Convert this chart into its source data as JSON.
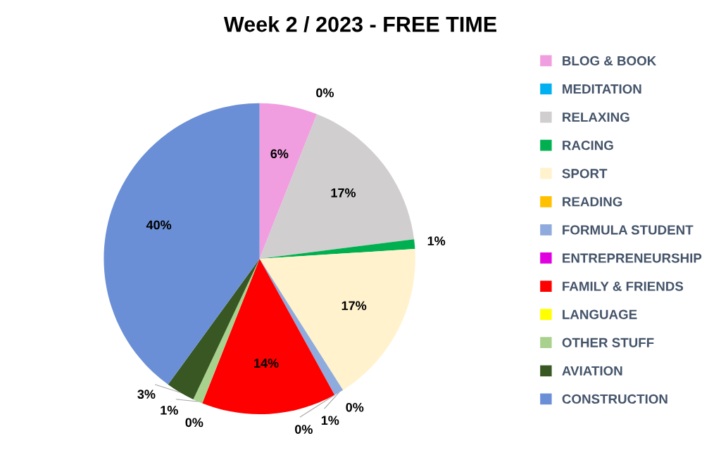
{
  "chart_data": {
    "type": "pie",
    "title": "Week 2 / 2023 - FREE TIME",
    "categories": [
      "BLOG & BOOK",
      "MEDITATION",
      "RELAXING",
      "RACING",
      "SPORT",
      "READING",
      "FORMULA STUDENT",
      "ENTREPRENEURSHIP",
      "FAMILY & FRIENDS",
      "LANGUAGE",
      "OTHER STUFF",
      "AVIATION",
      "CONSTRUCTION"
    ],
    "values": [
      6,
      0,
      17,
      1,
      17,
      0,
      1,
      0,
      14,
      0,
      1,
      3,
      40
    ],
    "value_labels": [
      "6%",
      "0%",
      "17%",
      "1%",
      "17%",
      "0%",
      "1%",
      "0%",
      "14%",
      "0%",
      "1%",
      "3%",
      "40%"
    ],
    "colors": [
      "#f09ee0",
      "#00b0f0",
      "#d0cece",
      "#00b050",
      "#fff2cc",
      "#ffc000",
      "#8faadc",
      "#e000e0",
      "#ff0000",
      "#ffff00",
      "#a9d18e",
      "#385723",
      "#6a8fd6"
    ],
    "legend": "right"
  }
}
